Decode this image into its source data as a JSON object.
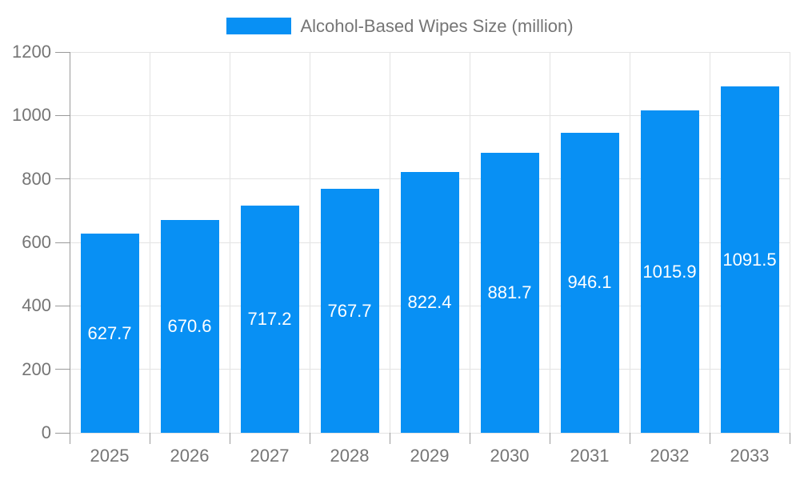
{
  "legend": {
    "label": "Alcohol-Based Wipes Size (million)"
  },
  "chart_data": {
    "type": "bar",
    "title": "",
    "legend_label": "Alcohol-Based Wipes Size (million)",
    "legend_position": "top-center",
    "categories": [
      "2025",
      "2026",
      "2027",
      "2028",
      "2029",
      "2030",
      "2031",
      "2032",
      "2033"
    ],
    "values": [
      627.7,
      670.6,
      717.2,
      767.7,
      822.4,
      881.7,
      946.1,
      1015.9,
      1091.5
    ],
    "value_labels": [
      "627.7",
      "670.6",
      "717.2",
      "767.7",
      "822.4",
      "881.7",
      "946.1",
      "1015.9",
      "1091.5"
    ],
    "xlabel": "",
    "ylabel": "",
    "ylim": [
      0,
      1200
    ],
    "yticks": [
      0,
      200,
      400,
      600,
      800,
      1000,
      1200
    ],
    "grid": true
  },
  "colors": {
    "bar": "#0890f4",
    "bar_value_label": "#ffffff",
    "axis_text": "#757575",
    "legend_text": "#757575",
    "gridline": "#e3e3e3",
    "axis_line": "#9a9a9a",
    "background": "#ffffff"
  }
}
